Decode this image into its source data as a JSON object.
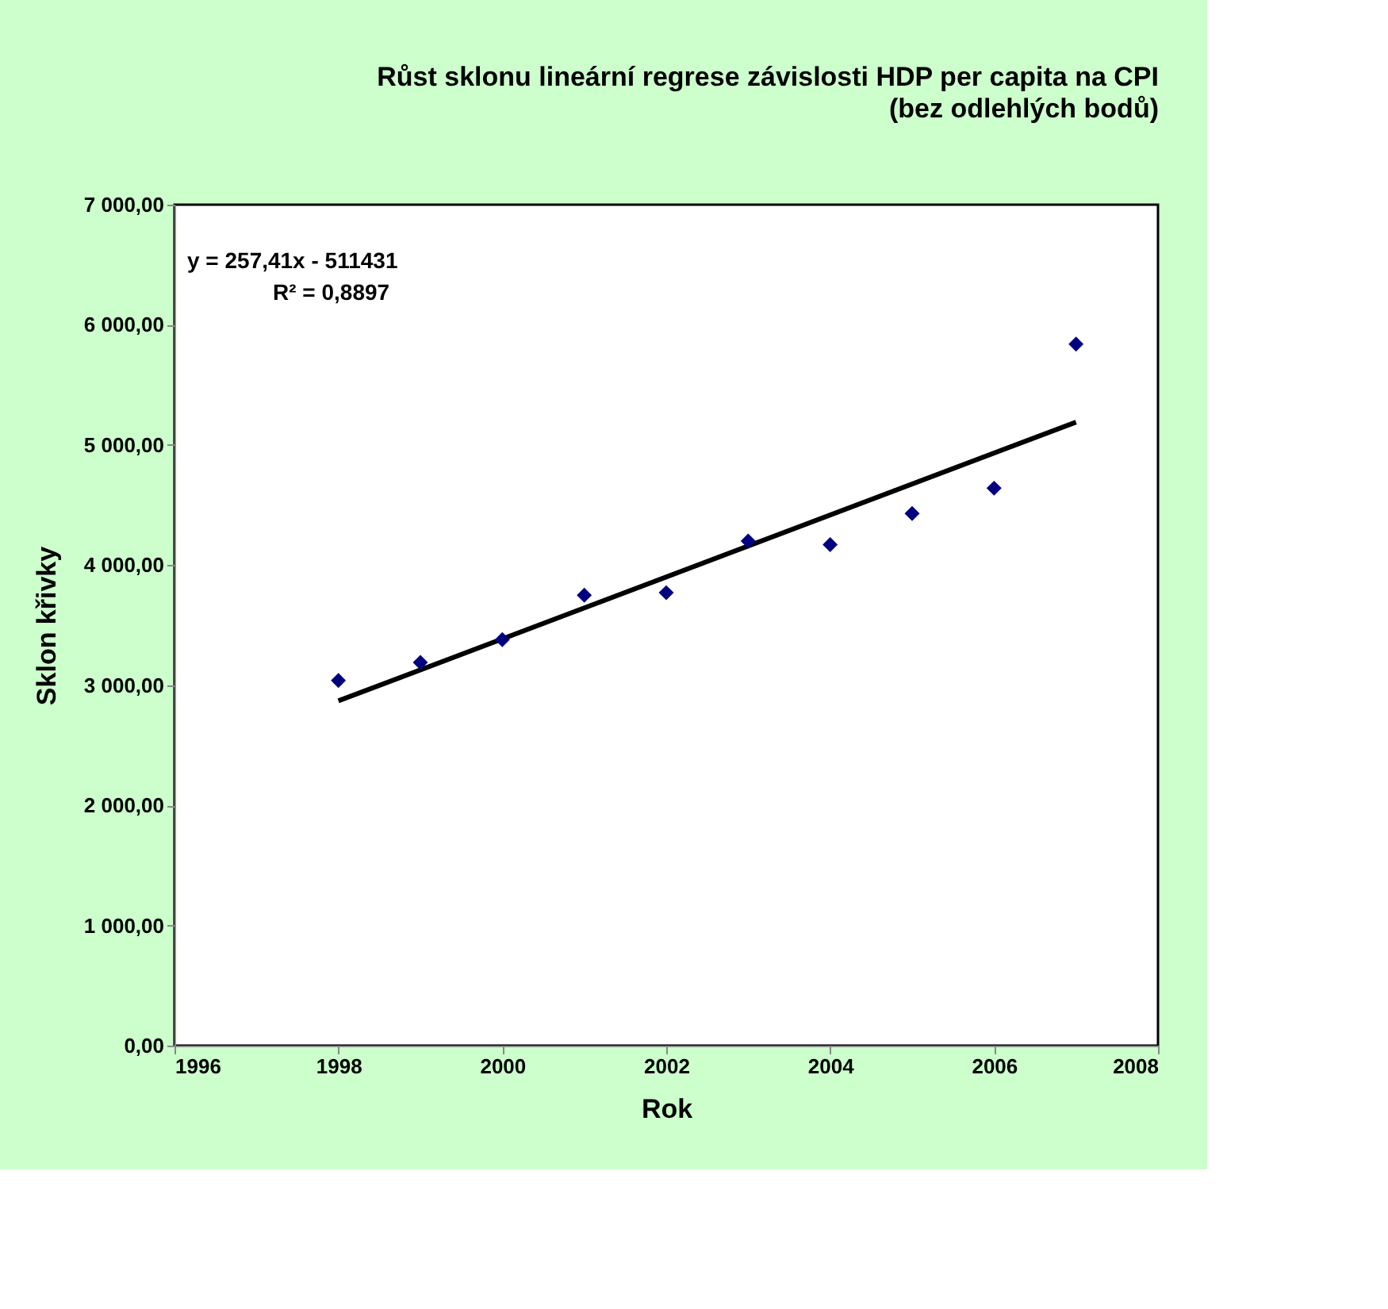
{
  "chart_data": {
    "type": "scatter",
    "title": "Růst sklonu lineární regrese závislosti HDP per capita na CPI",
    "subtitle": "(bez odlehlých bodů)",
    "xlabel": "Rok",
    "ylabel": "Sklon křivky",
    "annotations": [
      "y = 257,41x - 511431",
      "R² = 0,8897"
    ],
    "x": [
      1998,
      1999,
      2000,
      2001,
      2002,
      2003,
      2004,
      2005,
      2006,
      2007
    ],
    "series": [
      {
        "color": "#000080",
        "marker": "diamond",
        "values": [
          3040,
          3190,
          3380,
          3750,
          3770,
          4200,
          4170,
          4430,
          4640,
          5840
        ]
      },
      {
        "type": "line",
        "color": "#000000",
        "marker": "none",
        "line_style": "solid",
        "x": [
          1998,
          2007
        ],
        "values": [
          2870,
          5190
        ]
      }
    ],
    "xlim": [
      1996,
      2008
    ],
    "xticks": [
      1996,
      1998,
      2000,
      2002,
      2004,
      2006,
      2008
    ],
    "ylim": [
      0,
      7000
    ],
    "yticks": [
      {
        "value": 0,
        "label": "0,00"
      },
      {
        "value": 1000,
        "label": "1 000,00"
      },
      {
        "value": 2000,
        "label": "2 000,00"
      },
      {
        "value": 3000,
        "label": "3 000,00"
      },
      {
        "value": 4000,
        "label": "4 000,00"
      },
      {
        "value": 5000,
        "label": "5 000,00"
      },
      {
        "value": 6000,
        "label": "6 000,00"
      },
      {
        "value": 7000,
        "label": "7 000,00"
      }
    ],
    "grid": false
  }
}
